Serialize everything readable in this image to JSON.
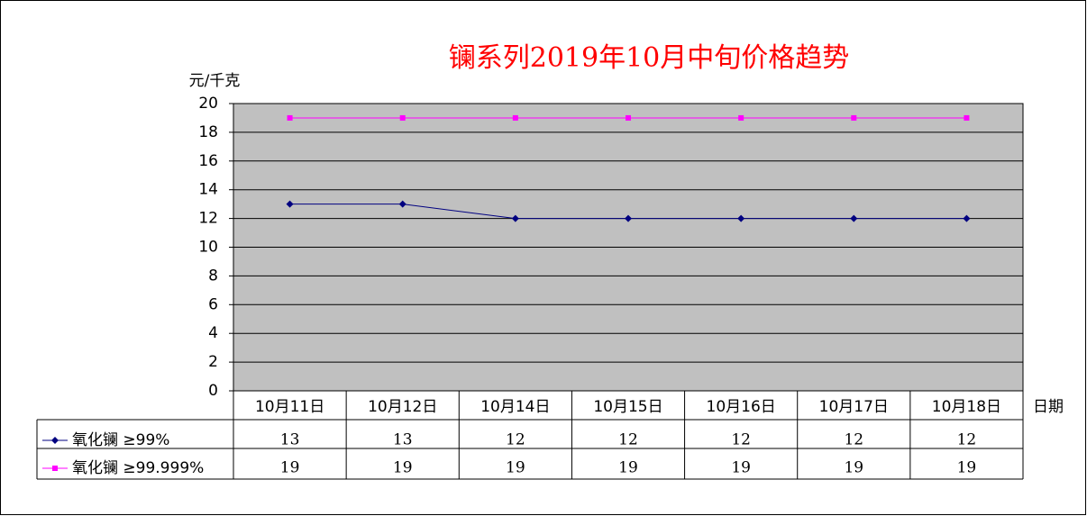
{
  "chart_data": {
    "type": "line",
    "title": "镧系列2019年10月中旬价格趋势",
    "y_label": "元/千克",
    "x_label": "日期",
    "categories": [
      "10月11日",
      "10月12日",
      "10月14日",
      "10月15日",
      "10月16日",
      "10月17日",
      "10月18日"
    ],
    "series": [
      {
        "name": "氧化镧 ≥99%",
        "color": "#000080",
        "marker": "diamond",
        "values": [
          13,
          13,
          12,
          12,
          12,
          12,
          12
        ]
      },
      {
        "name": "氧化镧 ≥99.999%",
        "color": "#ff00ff",
        "marker": "square",
        "values": [
          19,
          19,
          19,
          19,
          19,
          19,
          19
        ]
      }
    ],
    "ylim": [
      0,
      20
    ],
    "yticks": [
      0,
      2,
      4,
      6,
      8,
      10,
      12,
      14,
      16,
      18,
      20
    ],
    "grid": true
  }
}
